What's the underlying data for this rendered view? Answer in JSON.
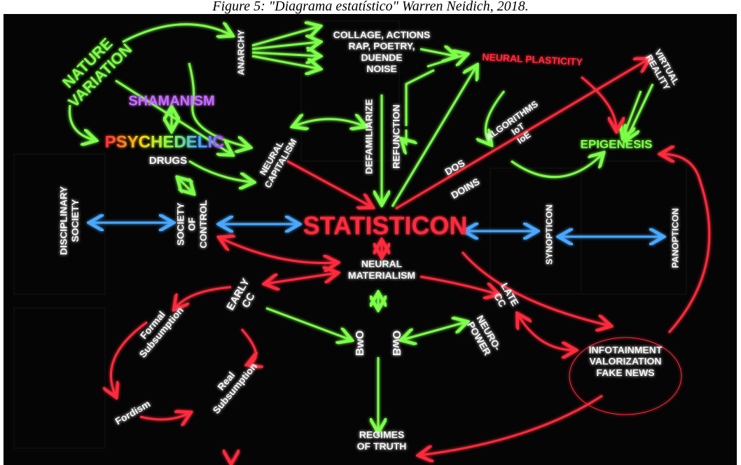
{
  "caption": "Figure 5: \"Diagrama estatístico\" Warren Neidich, 2018.",
  "nodes": [
    {
      "lines": [
        "NATURE",
        "VARIATION"
      ]
    },
    {
      "lines": [
        "ANARCHY"
      ]
    },
    {
      "lines": [
        "COLLAGE, ACTIONS",
        "RAP, POETRY,",
        "DUENDE",
        "NOISE"
      ]
    },
    {
      "lines": [
        "NEURAL PLASTICITY"
      ]
    },
    {
      "lines": [
        "VIRTUAL",
        "REALITY"
      ]
    },
    {
      "lines": [
        "SHAMANISM"
      ]
    },
    {
      "lines": [
        "PSYCHEDELIC"
      ]
    },
    {
      "lines": [
        "DRUGS"
      ]
    },
    {
      "lines": [
        "NEURAL",
        "CAPITALISM"
      ]
    },
    {
      "lines": [
        "DEFAMILIARIZE"
      ]
    },
    {
      "lines": [
        "REFUNCTION"
      ]
    },
    {
      "lines": [
        "ALGORITHMS",
        "IoT",
        "IoE"
      ]
    },
    {
      "lines": [
        "EPIGENESIS"
      ]
    },
    {
      "lines": [
        "DOS"
      ]
    },
    {
      "lines": [
        "DOINS"
      ]
    },
    {
      "lines": [
        "DISCIPLINARY",
        "SOCIETY"
      ]
    },
    {
      "lines": [
        "SOCIETY",
        "OF",
        "CONTROL"
      ]
    },
    {
      "lines": [
        "STATISTICON"
      ]
    },
    {
      "lines": [
        "SYNOPTICON"
      ]
    },
    {
      "lines": [
        "PANOPTICON"
      ]
    },
    {
      "lines": [
        "NEURAL",
        "MATERIALISM"
      ]
    },
    {
      "lines": [
        "EARLY",
        "CC"
      ]
    },
    {
      "lines": [
        "LATE",
        "CC"
      ]
    },
    {
      "lines": [
        "Formal",
        "Subsumption"
      ]
    },
    {
      "lines": [
        "Real",
        "Subsumption"
      ]
    },
    {
      "lines": [
        "Fordism"
      ]
    },
    {
      "lines": [
        "BwO"
      ]
    },
    {
      "lines": [
        "BwO"
      ]
    },
    {
      "lines": [
        "NEURO-",
        "POWER"
      ]
    },
    {
      "lines": [
        "INFOTAINMENT",
        "VALORIZATION",
        "FAKE NEWS"
      ]
    },
    {
      "lines": [
        "REGIMES",
        "OF TRUTH"
      ]
    }
  ]
}
